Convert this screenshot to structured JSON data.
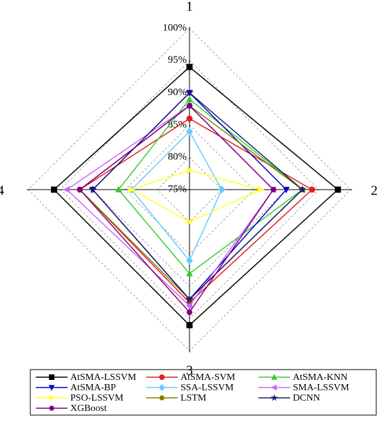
{
  "chart_data": {
    "type": "radar",
    "categories": [
      "1",
      "2",
      "3",
      "4"
    ],
    "rlim": [
      75,
      100
    ],
    "rticks": [
      {
        "value": 75,
        "label": "75%"
      },
      {
        "value": 80,
        "label": "80%"
      },
      {
        "value": 85,
        "label": "85%"
      },
      {
        "value": 90,
        "label": "90%"
      },
      {
        "value": 95,
        "label": "95%"
      },
      {
        "value": 100,
        "label": "100%"
      }
    ],
    "grid": true,
    "legend": "bottom",
    "series": [
      {
        "name": "AtSMA-LSSVM",
        "color": "#000000",
        "marker": "square",
        "values": [
          94,
          98,
          96,
          96
        ]
      },
      {
        "name": "AtSMA-SVM",
        "color": "#e02020",
        "marker": "circle",
        "values": [
          86,
          94,
          92.5,
          92
        ]
      },
      {
        "name": "AtSMA-KNN",
        "color": "#33cc33",
        "marker": "triangle-up",
        "values": [
          89,
          92.5,
          88,
          86
        ]
      },
      {
        "name": "AtSMA-BP",
        "color": "#0000cc",
        "marker": "triangle-down",
        "values": [
          90,
          90,
          92,
          90
        ]
      },
      {
        "name": "SSA-LSSVM",
        "color": "#66ccff",
        "marker": "diamond",
        "values": [
          84,
          80,
          86,
          84
        ]
      },
      {
        "name": "SMA-LSSVM",
        "color": "#cc66ff",
        "marker": "triangle-left",
        "values": [
          88,
          88,
          93,
          94
        ]
      },
      {
        "name": "PSO-LSSVM",
        "color": "#ffff33",
        "marker": "triangle-right",
        "values": [
          78,
          86,
          80,
          84
        ]
      },
      {
        "name": "LSTM",
        "color": "#808000",
        "marker": "hexagon",
        "values": [
          88,
          92.5,
          92,
          92
        ]
      },
      {
        "name": "DCNN",
        "color": "#1a1a6e",
        "marker": "star",
        "values": [
          90,
          92.5,
          92,
          90
        ]
      },
      {
        "name": "XGBoost",
        "color": "#800080",
        "marker": "hexagon",
        "values": [
          88,
          88,
          94,
          92
        ]
      }
    ]
  }
}
